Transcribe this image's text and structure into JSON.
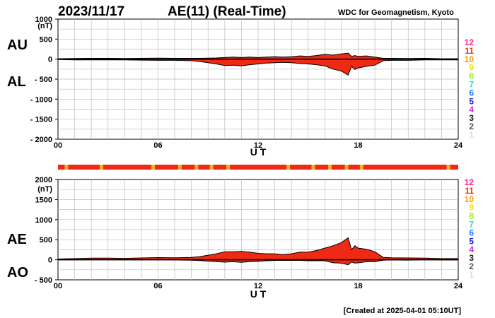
{
  "header": {
    "date": "2023/11/17",
    "title": "AE(11) (Real-Time)",
    "source": "WDC for Geomagnetism, Kyoto"
  },
  "footer": {
    "created": "[Created at 2025-04-01 05:10UT]"
  },
  "colors": {
    "fill": "#ee2a14",
    "data_bar": "#ee2a14",
    "bar_highlight": "#f2b32a",
    "grid": "#bdbdbd",
    "ink": "#000000"
  },
  "station_count_scale": {
    "labels": [
      "12",
      "11",
      "10",
      "9",
      "8",
      "7",
      "6",
      "5",
      "4",
      "3",
      "2",
      "1"
    ],
    "colors": [
      "#ff1f8e",
      "#ff2a00",
      "#ff9900",
      "#f2e600",
      "#99ee22",
      "#22ddcc",
      "#1e7cff",
      "#2222cc",
      "#cc33cc",
      "#222222",
      "#555555",
      "#dddddd"
    ]
  },
  "chart_data": [
    {
      "type": "area",
      "name": "AU/AL",
      "label_upper": "AU",
      "label_lower": "AL",
      "unit": "(nT)",
      "xlabel": "U T",
      "xlim": [
        0,
        24
      ],
      "xticks": [
        "00",
        "06",
        "12",
        "18",
        "24"
      ],
      "ylim": [
        -2000,
        1000
      ],
      "yticks": [
        "1000",
        "500",
        "0",
        "- 500",
        "- 1000",
        "- 1500",
        "- 2000"
      ],
      "grid": true,
      "x": [
        0,
        1,
        2,
        3,
        4,
        5,
        6,
        7,
        8,
        8.5,
        9,
        9.5,
        10,
        10.5,
        11,
        11.5,
        12,
        12.5,
        13,
        13.5,
        14,
        14.5,
        15,
        15.5,
        16,
        16.5,
        17,
        17.4,
        17.6,
        17.8,
        18,
        18.5,
        19,
        19.5,
        20,
        21,
        22,
        23,
        24
      ],
      "series": [
        {
          "name": "AU",
          "values": [
            10,
            15,
            20,
            20,
            15,
            20,
            25,
            20,
            20,
            20,
            25,
            30,
            40,
            50,
            40,
            50,
            40,
            50,
            60,
            50,
            60,
            80,
            70,
            90,
            120,
            100,
            130,
            150,
            70,
            90,
            70,
            80,
            50,
            20,
            20,
            15,
            20,
            10,
            10
          ]
        },
        {
          "name": "AL",
          "values": [
            -10,
            -20,
            -20,
            -20,
            -20,
            -25,
            -30,
            -30,
            -40,
            -60,
            -90,
            -120,
            -160,
            -150,
            -170,
            -140,
            -120,
            -100,
            -90,
            -80,
            -90,
            -110,
            -120,
            -140,
            -170,
            -250,
            -300,
            -400,
            -180,
            -260,
            -220,
            -180,
            -150,
            -40,
            -30,
            -30,
            -20,
            -20,
            -20
          ]
        }
      ]
    },
    {
      "type": "area",
      "name": "AE/AO",
      "label_upper": "AE",
      "label_lower": "AO",
      "unit": "(nT)",
      "xlabel": "U T",
      "xlim": [
        0,
        24
      ],
      "xticks": [
        "00",
        "06",
        "12",
        "18",
        "24"
      ],
      "ylim": [
        -500,
        2000
      ],
      "yticks": [
        "2000",
        "1500",
        "1000",
        "500",
        "0",
        "- 500"
      ],
      "grid": true,
      "x": [
        0,
        1,
        2,
        3,
        4,
        5,
        6,
        7,
        8,
        8.5,
        9,
        9.5,
        10,
        10.5,
        11,
        11.5,
        12,
        12.5,
        13,
        13.5,
        14,
        14.5,
        15,
        15.5,
        16,
        16.5,
        17,
        17.4,
        17.6,
        17.8,
        18,
        18.5,
        19,
        19.5,
        20,
        21,
        22,
        23,
        24
      ],
      "series": [
        {
          "name": "AE",
          "values": [
            20,
            30,
            40,
            40,
            35,
            45,
            55,
            50,
            60,
            80,
            115,
            150,
            200,
            200,
            210,
            190,
            160,
            150,
            150,
            130,
            150,
            190,
            190,
            230,
            290,
            350,
            430,
            550,
            250,
            350,
            290,
            260,
            200,
            60,
            50,
            45,
            40,
            30,
            30
          ]
        },
        {
          "name": "AO",
          "values": [
            0,
            -3,
            0,
            0,
            -3,
            -3,
            -3,
            -5,
            -10,
            -20,
            -33,
            -45,
            -60,
            -50,
            -65,
            -45,
            -40,
            -25,
            -15,
            -15,
            -15,
            -15,
            -25,
            -25,
            -25,
            -75,
            -85,
            -125,
            -55,
            -85,
            -75,
            -50,
            -50,
            -10,
            -5,
            -8,
            0,
            -5,
            -5
          ]
        }
      ]
    }
  ]
}
